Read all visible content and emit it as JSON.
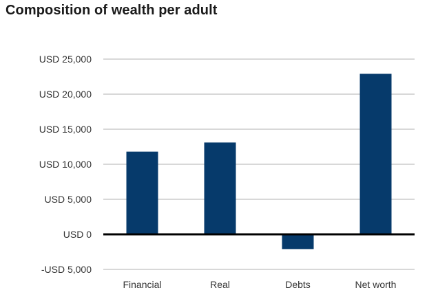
{
  "chart_data": {
    "type": "bar",
    "title": "Composition of wealth per adult",
    "xlabel": "",
    "ylabel": "",
    "categories": [
      "Financial",
      "Real",
      "Debts",
      "Net worth"
    ],
    "values": [
      11800,
      13100,
      -2100,
      22900
    ],
    "ylim": [
      -5000,
      25000
    ],
    "yticks": [
      -5000,
      0,
      5000,
      10000,
      15000,
      20000,
      25000
    ],
    "ytick_labels": [
      "-USD 5,000",
      "USD 0",
      "USD 5,000",
      "USD 10,000",
      "USD 15,000",
      "USD 20,000",
      "USD 25,000"
    ],
    "grid": true,
    "legend": "none",
    "bar_color": "#063a6b",
    "grid_color": "#b0b0b0",
    "zero_line_color": "#000000"
  }
}
